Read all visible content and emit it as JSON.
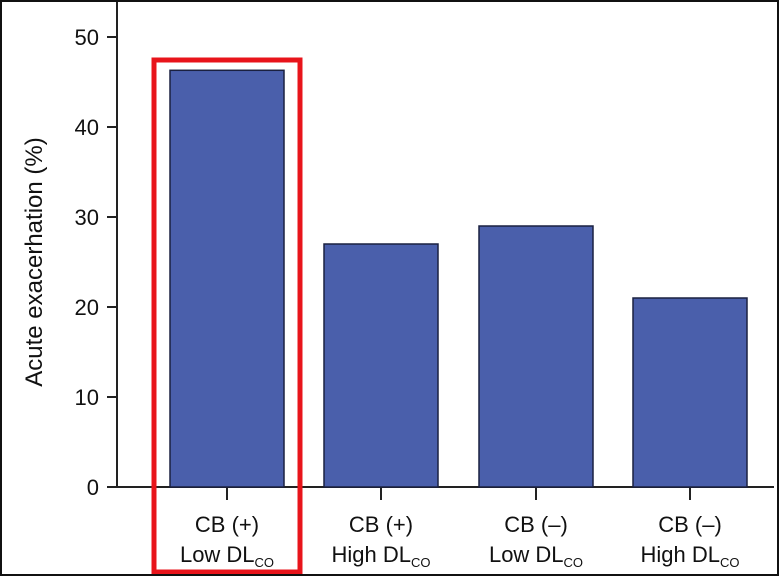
{
  "chart_data": {
    "type": "bar",
    "title": "",
    "xlabel": "",
    "ylabel": "Acute exacerhation (%)",
    "ylim": [
      0,
      50
    ],
    "yticks": [
      0,
      10,
      20,
      30,
      40,
      50
    ],
    "grid": false,
    "categories": [
      {
        "line1": "CB (+)",
        "line2": "Low DL",
        "sub": "CO"
      },
      {
        "line1": "CB (+)",
        "line2": "High DL",
        "sub": "CO"
      },
      {
        "line1": "CB (–)",
        "line2": "Low DL",
        "sub": "CO"
      },
      {
        "line1": "CB (–)",
        "line2": "High DL",
        "sub": "CO"
      }
    ],
    "values": [
      46.3,
      27,
      29,
      21
    ],
    "highlight_category": 0,
    "colors": {
      "bar": "#4a5fab",
      "bar_edge": "#1a2040",
      "highlight": "#e8141b",
      "axis": "#222222"
    }
  }
}
